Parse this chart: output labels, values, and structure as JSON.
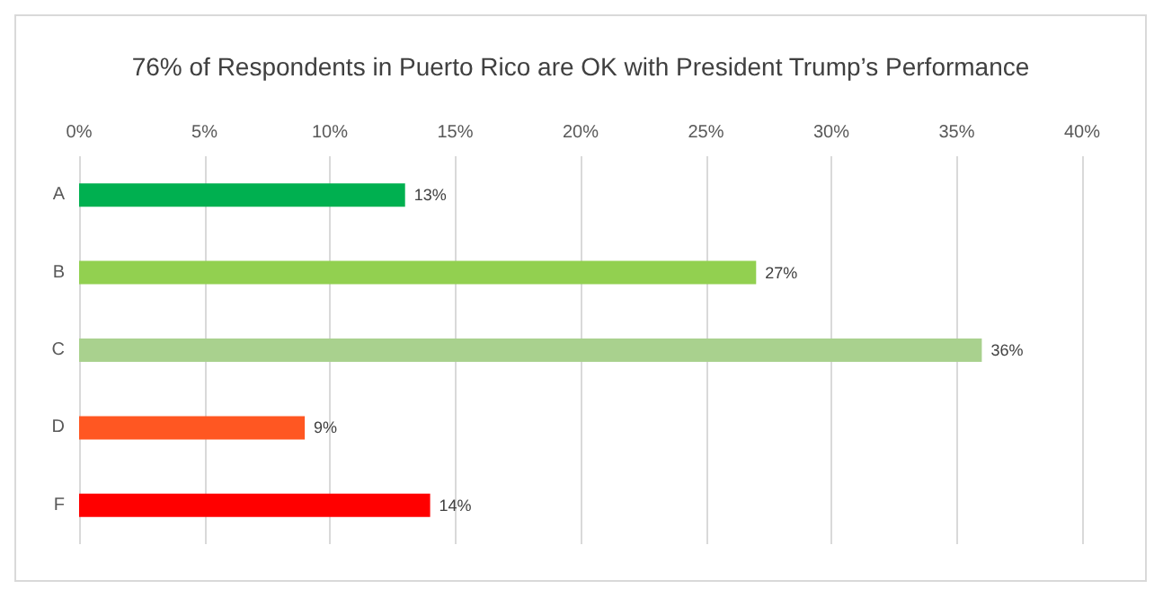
{
  "chart_data": {
    "type": "bar",
    "orientation": "horizontal",
    "title": "76% of Respondents in Puerto Rico are OK with President Trump’s Performance",
    "categories": [
      "A",
      "B",
      "C",
      "D",
      "F"
    ],
    "values": [
      13,
      27,
      36,
      9,
      14
    ],
    "colors": [
      "#00b050",
      "#92d050",
      "#a9d18e",
      "#ff5722",
      "#ff0000"
    ],
    "value_labels": [
      "13%",
      "27%",
      "36%",
      "9%",
      "14%"
    ],
    "xlim": [
      0,
      40
    ],
    "xticks": [
      {
        "value": 0,
        "label": "0%"
      },
      {
        "value": 5,
        "label": "5%"
      },
      {
        "value": 10,
        "label": "10%"
      },
      {
        "value": 15,
        "label": "15%"
      },
      {
        "value": 20,
        "label": "20%"
      },
      {
        "value": 25,
        "label": "25%"
      },
      {
        "value": 30,
        "label": "30%"
      },
      {
        "value": 35,
        "label": "35%"
      },
      {
        "value": 40,
        "label": "40%"
      }
    ],
    "grid": "x"
  }
}
